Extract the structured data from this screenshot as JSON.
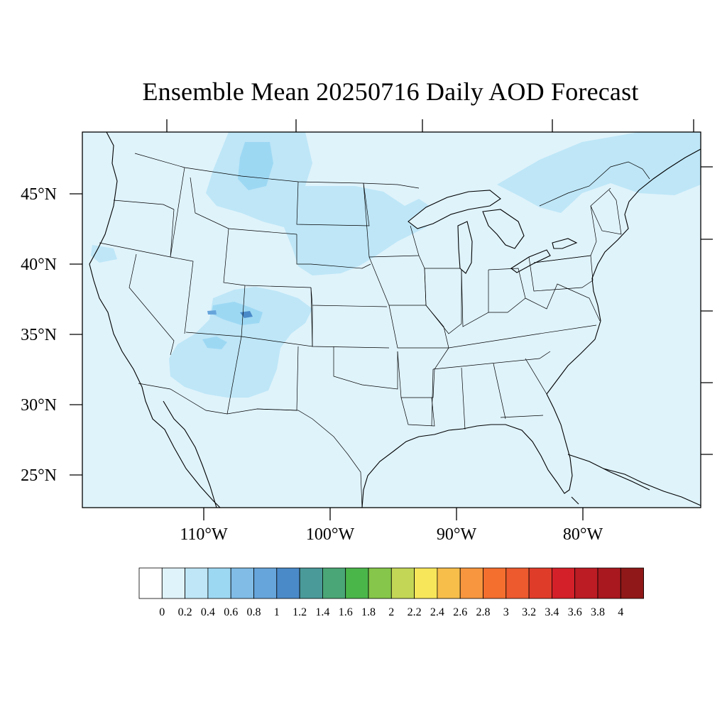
{
  "title": "Ensemble Mean 20250716 Daily AOD Forecast",
  "map": {
    "region": "Continental United States",
    "background_color": "#dff3fb",
    "lat_labels": [
      "45°N",
      "40°N",
      "35°N",
      "30°N",
      "25°N"
    ],
    "lon_labels": [
      "110°W",
      "100°W",
      "90°W",
      "80°W"
    ]
  },
  "colorbar": {
    "colors": [
      "#ffffff",
      "#dff3fb",
      "#bee6f7",
      "#9dd8f3",
      "#80bce6",
      "#66a5db",
      "#4a8ac9",
      "#4a9a9a",
      "#4aa676",
      "#4ab64a",
      "#86c64a",
      "#c4d656",
      "#f7e65a",
      "#f7be4a",
      "#f7963e",
      "#f46e2e",
      "#ec5a2e",
      "#e03c2a",
      "#d42028",
      "#bc1c24",
      "#a8181e",
      "#901818"
    ],
    "labels": [
      "0",
      "0.2",
      "0.4",
      "0.6",
      "0.8",
      "1",
      "1.2",
      "1.4",
      "1.6",
      "1.8",
      "2",
      "2.2",
      "2.4",
      "2.6",
      "2.8",
      "3",
      "3.2",
      "3.4",
      "3.6",
      "3.8",
      "4"
    ]
  }
}
